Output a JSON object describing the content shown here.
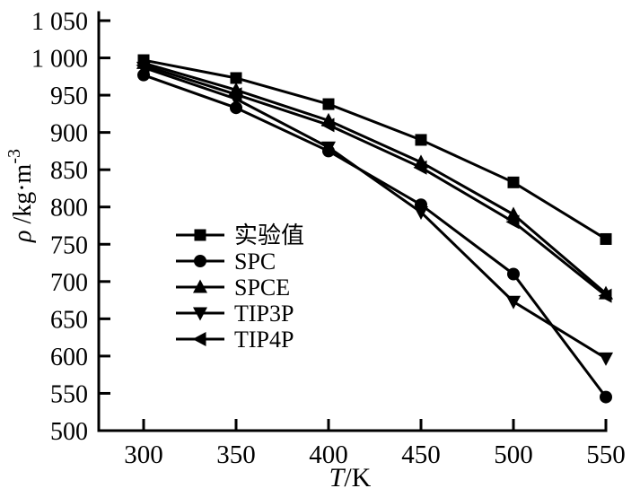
{
  "chart_data": {
    "type": "line",
    "title": "",
    "xlabel": "T/K",
    "ylabel": "ρ /kg·m⁻³",
    "x": [
      300,
      350,
      400,
      450,
      500,
      550
    ],
    "series": [
      {
        "name": "实验值",
        "marker": "square",
        "values": [
          997,
          973,
          938,
          890,
          833,
          757
        ]
      },
      {
        "name": "SPC",
        "marker": "circle",
        "values": [
          977,
          933,
          875,
          803,
          710,
          545
        ]
      },
      {
        "name": "SPCE",
        "marker": "triangle-up",
        "values": [
          993,
          957,
          916,
          860,
          790,
          684
        ]
      },
      {
        "name": "TIP3P",
        "marker": "triangle-down",
        "values": [
          987,
          945,
          880,
          793,
          673,
          597
        ]
      },
      {
        "name": "TIP4P",
        "marker": "triangle-left",
        "values": [
          990,
          951,
          910,
          853,
          780,
          681
        ]
      }
    ],
    "xticks": [
      300,
      350,
      400,
      450,
      500,
      550
    ],
    "xtick_labels": [
      "300",
      "350",
      "400",
      "450",
      "500",
      "550"
    ],
    "yticks": [
      500,
      550,
      600,
      650,
      700,
      750,
      800,
      850,
      900,
      950,
      1000,
      1050
    ],
    "ytick_labels": [
      "500",
      "550",
      "600",
      "650",
      "700",
      "750",
      "800",
      "850",
      "900",
      "950",
      "1 000",
      "1 050"
    ],
    "xlim": [
      275,
      550
    ],
    "ylim": [
      500,
      1050
    ],
    "grid": false,
    "legend_position": "center-left-inside",
    "line_color": "#000000",
    "background": "#ffffff"
  }
}
